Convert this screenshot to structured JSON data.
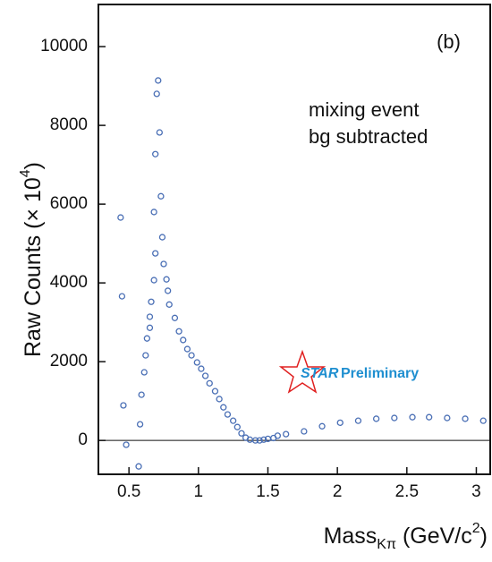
{
  "chart_data": {
    "type": "scatter",
    "y_label": [
      "Raw Counts (× 10",
      "4",
      ")"
    ],
    "x_label": [
      "Mass",
      "Kπ",
      " (GeV/c",
      "2",
      ")"
    ],
    "annotations": [
      "(b)",
      "mixing event",
      "bg subtracted"
    ],
    "logo": [
      "STAR",
      "Preliminary"
    ],
    "color": "#4a6fb5",
    "x": [
      0.44,
      0.45,
      0.46,
      0.48,
      0.57,
      0.58,
      0.59,
      0.61,
      0.62,
      0.63,
      0.65,
      0.65,
      0.66,
      0.68,
      0.69,
      0.68,
      0.69,
      0.7,
      0.71,
      0.72,
      0.73,
      0.74,
      0.75,
      0.77,
      0.78,
      0.79,
      0.83,
      0.86,
      0.89,
      0.92,
      0.95,
      0.99,
      1.02,
      1.05,
      1.08,
      1.12,
      1.15,
      1.18,
      1.21,
      1.25,
      1.28,
      1.31,
      1.34,
      1.37,
      1.41,
      1.44,
      1.47,
      1.5,
      1.54,
      1.57,
      1.63,
      1.76,
      1.89,
      2.02,
      2.15,
      2.28,
      2.41,
      2.54,
      2.66,
      2.79,
      2.92,
      3.05
    ],
    "values": [
      5660,
      3660,
      890,
      -110,
      -660,
      410,
      1160,
      1730,
      2160,
      2590,
      2860,
      3140,
      3520,
      4070,
      4750,
      5800,
      7270,
      8800,
      9140,
      7820,
      6200,
      5160,
      4480,
      4090,
      3800,
      3450,
      3110,
      2770,
      2550,
      2320,
      2160,
      1980,
      1820,
      1640,
      1450,
      1250,
      1050,
      840,
      660,
      500,
      340,
      180,
      70,
      20,
      0,
      0,
      20,
      40,
      60,
      120,
      160,
      230,
      360,
      450,
      500,
      550,
      570,
      590,
      590,
      570,
      550,
      500
    ],
    "xlim": [
      0.28,
      3.1
    ],
    "ylim": [
      -860,
      11070
    ],
    "xticks": [
      0.5,
      1,
      1.5,
      2,
      2.5,
      3
    ],
    "yticks": [
      0,
      2000,
      4000,
      6000,
      8000,
      10000
    ]
  }
}
